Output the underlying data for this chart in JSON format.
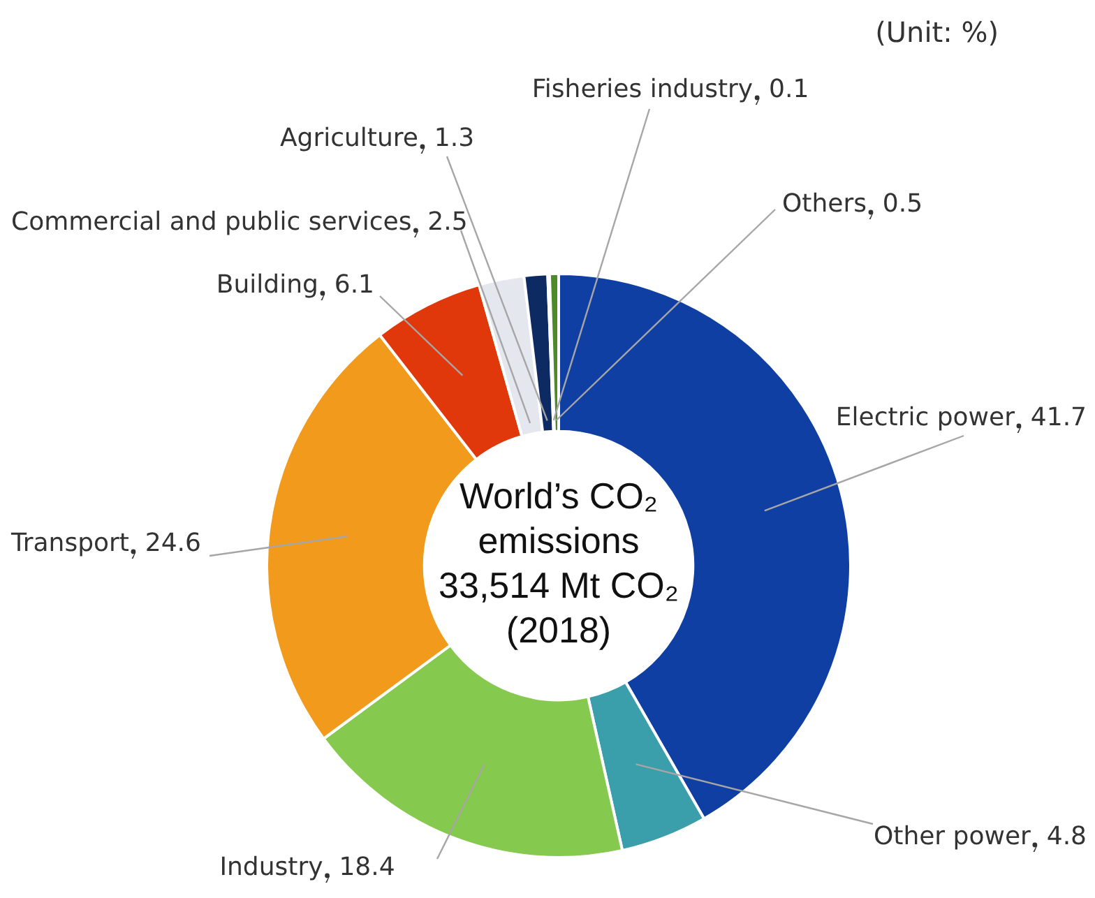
{
  "chart_data": {
    "type": "donut",
    "title": "World’s CO₂ emissions 33,514 Mt CO₂ (2018)",
    "annotations": [
      "(Unit: %)"
    ],
    "categories": [
      "Electric power",
      "Other power",
      "Industry",
      "Transport",
      "Building",
      "Commercial and public services",
      "Agriculture",
      "Fisheries industry",
      "Others"
    ],
    "values": [
      41.7,
      4.8,
      18.4,
      24.6,
      6.1,
      2.5,
      1.3,
      0.1,
      0.5
    ],
    "colors": [
      "#0f3fa3",
      "#3a9faa",
      "#86c94f",
      "#f19a1b",
      "#e1380b",
      "#e4e7ee",
      "#0d2a63",
      "#2b4fa0",
      "#4e8a2a"
    ],
    "data_labels": true,
    "legend": false
  }
}
